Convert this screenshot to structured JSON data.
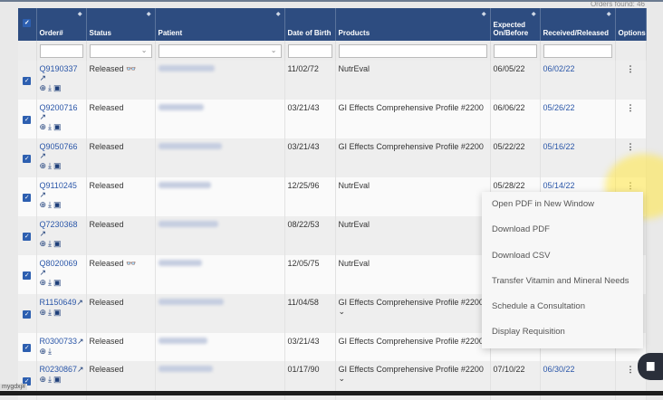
{
  "orders_found": "Orders found: 46",
  "columns": [
    "Order#",
    "Status",
    "Patient",
    "Date of Birth",
    "Products",
    "Expected On/Before",
    "Received/Released",
    "Options"
  ],
  "rows": [
    {
      "order": "Q9190337",
      "status": "Released",
      "binoculars": true,
      "dob": "11/02/72",
      "product": "NutrEval",
      "expected": "06/05/22",
      "received": "06/02/22",
      "inline_link": false,
      "icons": 3,
      "expand": false
    },
    {
      "order": "Q9200716",
      "status": "Released",
      "binoculars": false,
      "dob": "03/21/43",
      "product": "GI Effects Comprehensive Profile #2200",
      "expected": "06/06/22",
      "received": "05/26/22",
      "inline_link": false,
      "icons": 3,
      "expand": false
    },
    {
      "order": "Q9050766",
      "status": "Released",
      "binoculars": false,
      "dob": "03/21/43",
      "product": "GI Effects Comprehensive Profile #2200",
      "expected": "05/22/22",
      "received": "05/16/22",
      "inline_link": false,
      "icons": 3,
      "expand": false
    },
    {
      "order": "Q9110245",
      "status": "Released",
      "binoculars": false,
      "dob": "12/25/96",
      "product": "NutrEval",
      "expected": "05/28/22",
      "received": "05/14/22",
      "inline_link": false,
      "icons": 3,
      "expand": false
    },
    {
      "order": "Q7230368",
      "status": "Released",
      "binoculars": false,
      "dob": "08/22/53",
      "product": "NutrEval",
      "expected": "",
      "received": "",
      "inline_link": false,
      "icons": 3,
      "expand": false
    },
    {
      "order": "Q8020069",
      "status": "Released",
      "binoculars": true,
      "dob": "12/05/75",
      "product": "NutrEval",
      "expected": "",
      "received": "",
      "inline_link": false,
      "icons": 3,
      "expand": false
    },
    {
      "order": "R1150649",
      "status": "Released",
      "binoculars": false,
      "dob": "11/04/58",
      "product": "GI Effects Comprehensive Profile #2200",
      "expected": "",
      "received": "",
      "inline_link": true,
      "icons": 3,
      "expand": true
    },
    {
      "order": "R0300733",
      "status": "Released",
      "binoculars": false,
      "dob": "03/21/43",
      "product": "GI Effects Comprehensive Profile #2200",
      "expected": "",
      "received": "",
      "inline_link": true,
      "icons": 2,
      "expand": false
    },
    {
      "order": "R0230867",
      "status": "Released",
      "binoculars": false,
      "dob": "01/17/90",
      "product": "GI Effects Comprehensive Profile #2200",
      "expected": "07/10/22",
      "received": "06/30/22",
      "inline_link": true,
      "icons": 3,
      "expand": true
    }
  ],
  "options_menu": [
    "Open PDF in New Window",
    "Download PDF",
    "Download CSV",
    "Transfer Vitamin and Mineral Needs",
    "Schedule a Consultation",
    "Display Requisition"
  ],
  "status_bar": "mygdxj#",
  "colors": {
    "header": "#2d4c80",
    "link": "#2a56a8",
    "highlight": "#ffe850"
  }
}
